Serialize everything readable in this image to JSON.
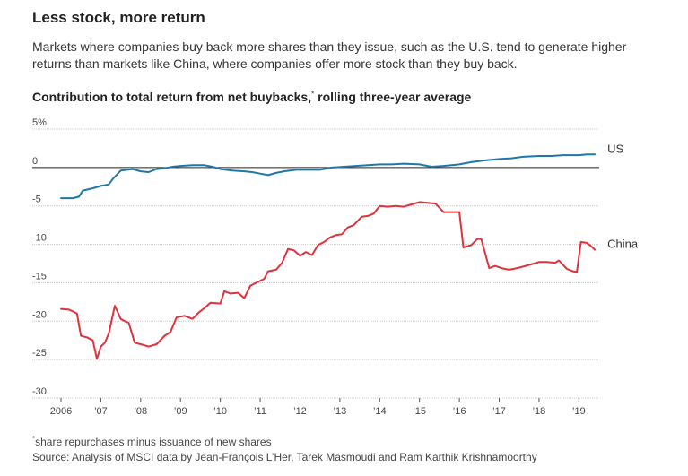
{
  "header": {
    "title": "Less stock, more return",
    "subtitle": "Markets where companies buy back more shares than they issue, such as the U.S. tend to generate higher returns than markets like China, where companies offer more stock than they buy back."
  },
  "chart_header": {
    "title": "Contribution to total return from net buybacks,",
    "title_marker": "*",
    "title_suffix": " rolling three-year average"
  },
  "footer": {
    "footnote_marker": "*",
    "footnote": "share repurchases minus issuance of new shares",
    "source": "Source: Analysis of MSCI data by Jean-François L’Her, Tarek Masmoudi and Ram Karthik Krishnamoorthy"
  },
  "colors": {
    "us": "#1f77a8",
    "china": "#e0323c",
    "grid": "#c8c8c8",
    "zero_line": "#222222",
    "tick_text": "#444444"
  },
  "chart_data": {
    "type": "line",
    "ylim": [
      -30,
      5
    ],
    "xlim": [
      2006,
      2019.6
    ],
    "y_ticks": [
      5,
      0,
      -5,
      -10,
      -15,
      -20,
      -25,
      -30
    ],
    "y_tick_labels": [
      "5%",
      "0",
      "-5",
      "-10",
      "-15",
      "-20",
      "-25",
      "-30"
    ],
    "x_ticks": [
      2006,
      2007,
      2008,
      2009,
      2010,
      2011,
      2012,
      2013,
      2014,
      2015,
      2016,
      2017,
      2018,
      2019
    ],
    "x_tick_labels": [
      "2006",
      "’07",
      "’08",
      "’09",
      "’10",
      "’11",
      "’12",
      "’13",
      "’14",
      "’15",
      "’16",
      "’17",
      "’18",
      "’19"
    ],
    "grid": true,
    "series": [
      {
        "name": "US",
        "x": [
          2006.0,
          2006.3,
          2006.45,
          2006.55,
          2006.8,
          2007.0,
          2007.2,
          2007.3,
          2007.5,
          2007.8,
          2008.0,
          2008.2,
          2008.4,
          2008.6,
          2008.8,
          2009.0,
          2009.3,
          2009.6,
          2009.8,
          2010.0,
          2010.3,
          2010.6,
          2010.8,
          2011.0,
          2011.2,
          2011.4,
          2011.6,
          2011.9,
          2012.2,
          2012.5,
          2012.8,
          2013.1,
          2013.4,
          2013.7,
          2014.0,
          2014.3,
          2014.6,
          2015.0,
          2015.3,
          2015.6,
          2016.0,
          2016.3,
          2016.6,
          2017.0,
          2017.3,
          2017.6,
          2018.0,
          2018.3,
          2018.6,
          2019.0,
          2019.2,
          2019.4
        ],
        "values": [
          -4.0,
          -4.0,
          -3.8,
          -3.0,
          -2.7,
          -2.4,
          -2.2,
          -1.5,
          -0.4,
          -0.2,
          -0.5,
          -0.6,
          -0.2,
          -0.1,
          0.1,
          0.2,
          0.3,
          0.3,
          0.1,
          -0.2,
          -0.4,
          -0.5,
          -0.6,
          -0.8,
          -1.0,
          -0.7,
          -0.5,
          -0.3,
          -0.3,
          -0.3,
          0.0,
          0.1,
          0.2,
          0.3,
          0.4,
          0.4,
          0.5,
          0.4,
          0.1,
          0.2,
          0.4,
          0.7,
          0.9,
          1.1,
          1.2,
          1.4,
          1.5,
          1.5,
          1.6,
          1.6,
          1.7,
          1.7
        ]
      },
      {
        "name": "China",
        "x": [
          2006.0,
          2006.2,
          2006.4,
          2006.5,
          2006.65,
          2006.8,
          2006.9,
          2007.0,
          2007.1,
          2007.2,
          2007.35,
          2007.5,
          2007.6,
          2007.7,
          2007.85,
          2008.0,
          2008.2,
          2008.4,
          2008.6,
          2008.75,
          2008.9,
          2009.1,
          2009.3,
          2009.45,
          2009.6,
          2009.75,
          2010.0,
          2010.1,
          2010.25,
          2010.45,
          2010.6,
          2010.75,
          2010.9,
          2011.1,
          2011.2,
          2011.4,
          2011.55,
          2011.7,
          2011.85,
          2012.0,
          2012.15,
          2012.3,
          2012.45,
          2012.6,
          2012.75,
          2012.9,
          2013.05,
          2013.2,
          2013.35,
          2013.55,
          2013.7,
          2013.85,
          2014.0,
          2014.2,
          2014.4,
          2014.6,
          2014.8,
          2015.0,
          2015.2,
          2015.4,
          2015.6,
          2015.8,
          2016.0,
          2016.1,
          2016.3,
          2016.45,
          2016.55,
          2016.75,
          2016.9,
          2017.05,
          2017.25,
          2017.45,
          2017.6,
          2017.8,
          2018.0,
          2018.2,
          2018.4,
          2018.5,
          2018.7,
          2018.85,
          2018.95,
          2019.05,
          2019.2,
          2019.3,
          2019.4
        ],
        "values": [
          -18.4,
          -18.5,
          -19.0,
          -21.9,
          -22.1,
          -22.5,
          -24.9,
          -23.3,
          -22.8,
          -21.6,
          -18.0,
          -19.7,
          -20.0,
          -20.2,
          -22.8,
          -23.0,
          -23.3,
          -23.0,
          -21.9,
          -21.4,
          -19.5,
          -19.3,
          -19.7,
          -18.9,
          -18.3,
          -17.6,
          -17.7,
          -16.1,
          -16.4,
          -16.3,
          -17.0,
          -15.4,
          -15.0,
          -14.5,
          -13.5,
          -13.3,
          -12.4,
          -10.6,
          -10.8,
          -11.5,
          -11.0,
          -11.4,
          -10.1,
          -9.7,
          -9.1,
          -8.8,
          -8.7,
          -7.8,
          -7.5,
          -6.4,
          -6.3,
          -6.0,
          -5.0,
          -5.1,
          -5.0,
          -5.1,
          -4.8,
          -4.5,
          -4.6,
          -4.7,
          -5.8,
          -5.8,
          -5.8,
          -10.4,
          -10.1,
          -9.3,
          -9.3,
          -13.1,
          -12.8,
          -13.1,
          -13.3,
          -13.1,
          -12.9,
          -12.6,
          -12.3,
          -12.3,
          -12.4,
          -12.1,
          -13.2,
          -13.5,
          -13.6,
          -9.7,
          -9.8,
          -10.2,
          -10.7
        ]
      }
    ]
  }
}
